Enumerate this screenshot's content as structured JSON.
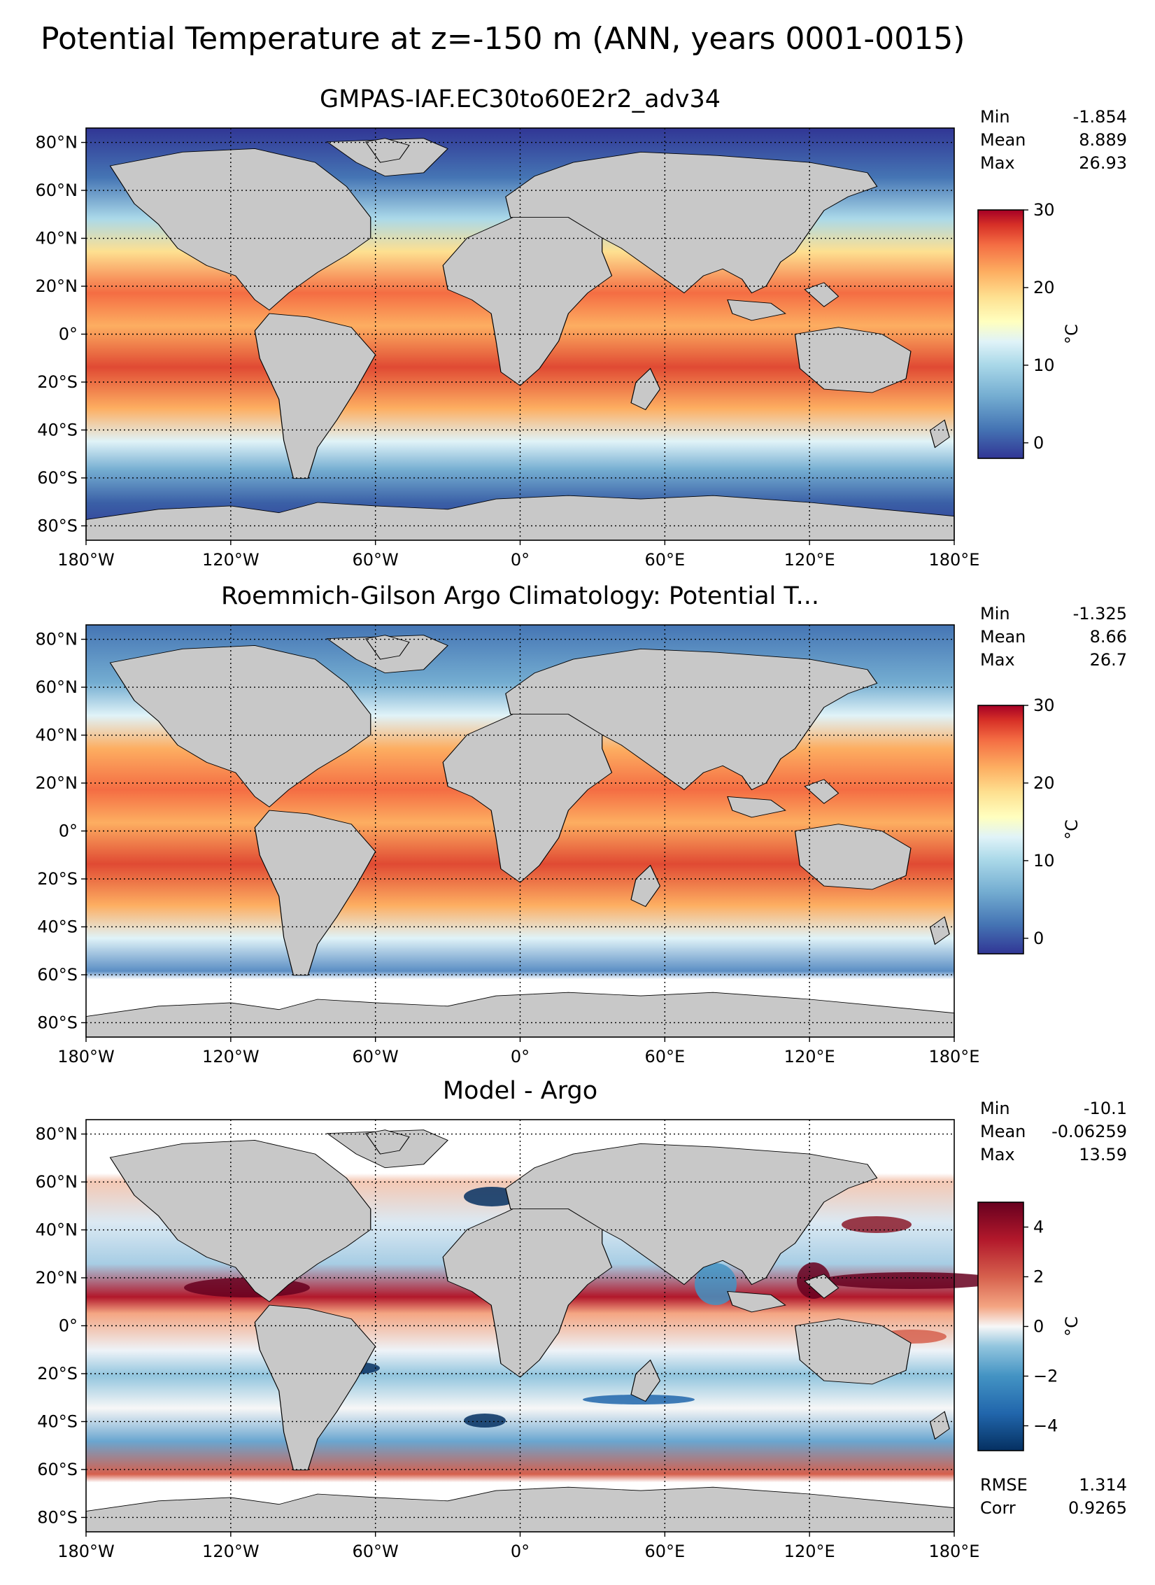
{
  "figure": {
    "title": "Potential Temperature at z=-150 m (ANN, years 0001-0015)"
  },
  "lon_ticks": [
    "180°W",
    "120°W",
    "60°W",
    "0°",
    "60°E",
    "120°E",
    "180°E"
  ],
  "lat_ticks": [
    "80°N",
    "60°N",
    "40°N",
    "20°N",
    "0°",
    "20°S",
    "40°S",
    "60°S",
    "80°S"
  ],
  "panels": [
    {
      "title": "GMPAS-IAF.EC30to60E2r2_adv34",
      "stats": [
        {
          "label": "Min",
          "value": "-1.854"
        },
        {
          "label": "Mean",
          "value": "8.889"
        },
        {
          "label": "Max",
          "value": "26.93"
        }
      ],
      "colorbar": {
        "ticks": [
          "0",
          "10",
          "20",
          "30"
        ],
        "unit": "°C",
        "colormap": "RdYlBu_r",
        "range": [
          -2,
          30
        ]
      },
      "extra_stats": []
    },
    {
      "title": "Roemmich-Gilson Argo Climatology: Potential T...",
      "stats": [
        {
          "label": "Min",
          "value": "-1.325"
        },
        {
          "label": "Mean",
          "value": "8.66"
        },
        {
          "label": "Max",
          "value": "26.7"
        }
      ],
      "colorbar": {
        "ticks": [
          "0",
          "10",
          "20",
          "30"
        ],
        "unit": "°C",
        "colormap": "RdYlBu_r",
        "range": [
          -2,
          30
        ]
      },
      "extra_stats": []
    },
    {
      "title": "Model - Argo",
      "stats": [
        {
          "label": "Min",
          "value": "-10.1"
        },
        {
          "label": "Mean",
          "value": "-0.06259"
        },
        {
          "label": "Max",
          "value": "13.59"
        }
      ],
      "colorbar": {
        "ticks": [
          "4",
          "2",
          "0",
          "−2",
          "−4"
        ],
        "unit": "°C",
        "colormap": "RdBu_r",
        "range": [
          -5,
          5
        ]
      },
      "extra_stats": [
        {
          "label": "RMSE",
          "value": "1.314"
        },
        {
          "label": "Corr",
          "value": "0.9265"
        }
      ]
    }
  ],
  "colors": {
    "land": "#c8c8c8",
    "no_data": "#ffffff",
    "warm": "#c8312e",
    "cold": "#2e4c9c"
  }
}
